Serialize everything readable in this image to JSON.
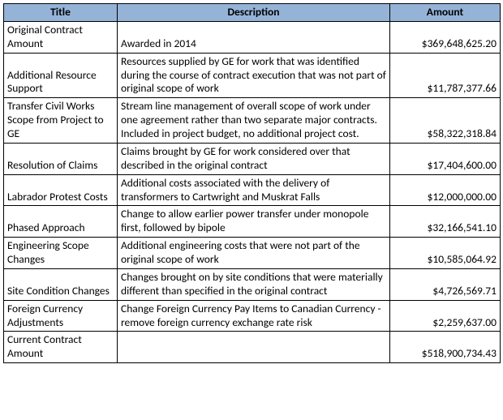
{
  "table": {
    "header_bg": "#95b3d7",
    "columns": [
      "Title",
      "Description",
      "Amount"
    ],
    "rows": [
      {
        "title": "Original Contract Amount",
        "description": "Awarded in 2014",
        "amount": "$369,648,625.20"
      },
      {
        "title": "Additional Resource Support",
        "description": "Resources supplied by GE for work that was identified during the course of contract execution that was not part of original scope of work",
        "amount": "$11,787,377.66"
      },
      {
        "title": "Transfer Civil Works Scope from Project to GE",
        "description": "Stream line management of overall scope of work under one agreement rather than two separate major contracts.  Included in project budget, no additional project cost.",
        "amount": "$58,322,318.84"
      },
      {
        "title": "Resolution of Claims",
        "description": "Claims brought by GE for work considered over that described in the original contract",
        "amount": "$17,404,600.00"
      },
      {
        "title": "Labrador Protest Costs",
        "description": "Additional costs associated with the delivery of transformers to Cartwright and Muskrat Falls",
        "amount": "$12,000,000.00"
      },
      {
        "title": "Phased Approach",
        "description": "Change to allow earlier power transfer under monopole first, followed by bipole",
        "amount": "$32,166,541.10"
      },
      {
        "title": "Engineering Scope Changes",
        "description": "Additional engineering costs that were not part of the original scope of work",
        "amount": "$10,585,064.92"
      },
      {
        "title": "Site Condition Changes",
        "description": "Changes brought on by site conditions that were materially different than specified in the original contract",
        "amount": "$4,726,569.71"
      },
      {
        "title": "Foreign Currency Adjustments",
        "description": "Change Foreign Currency Pay Items to Canadian Currency - remove foreign currency exchange rate risk",
        "amount": "$2,259,637.00"
      },
      {
        "title": "Current Contract Amount",
        "description": "",
        "amount": "$518,900,734.43"
      }
    ]
  }
}
